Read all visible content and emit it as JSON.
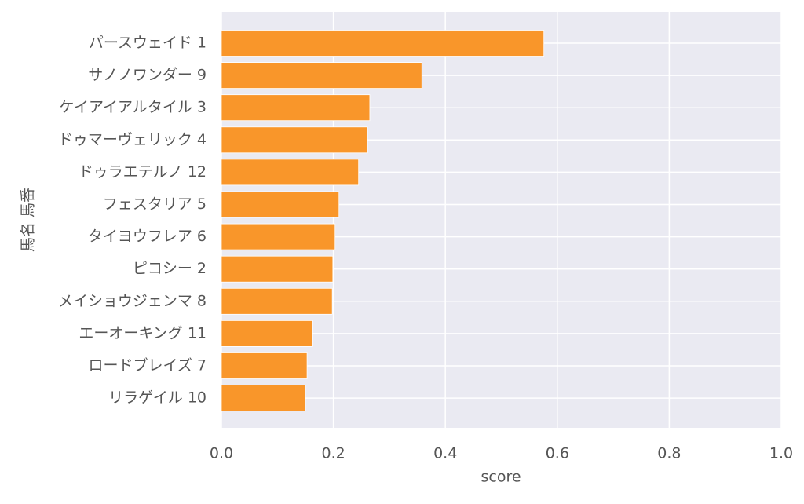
{
  "chart_data": {
    "type": "barh",
    "categories": [
      "パースウェイド 1",
      "サノノワンダー 9",
      "ケイアイアルタイル 3",
      "ドゥマーヴェリック 4",
      "ドゥラエテルノ 12",
      "フェスタリア 5",
      "タイヨウフレア 6",
      "ピコシー 2",
      "メイショウジェンマ 8",
      "エーオーキング 11",
      "ロードブレイズ 7",
      "リラゲイル 10"
    ],
    "values": [
      0.576,
      0.358,
      0.265,
      0.261,
      0.245,
      0.21,
      0.203,
      0.199,
      0.198,
      0.163,
      0.153,
      0.15
    ],
    "color": "#f9962a",
    "xlabel": "score",
    "ylabel": "馬名 馬番",
    "xlim": [
      0,
      1
    ],
    "xticks": [
      {
        "value": 0,
        "label": "0.0"
      },
      {
        "value": 0.2,
        "label": "0.2"
      },
      {
        "value": 0.4,
        "label": "0.4"
      },
      {
        "value": 0.6,
        "label": "0.6"
      },
      {
        "value": 0.8,
        "label": "0.8"
      },
      {
        "value": 1,
        "label": "1.0"
      }
    ],
    "grid": true
  }
}
